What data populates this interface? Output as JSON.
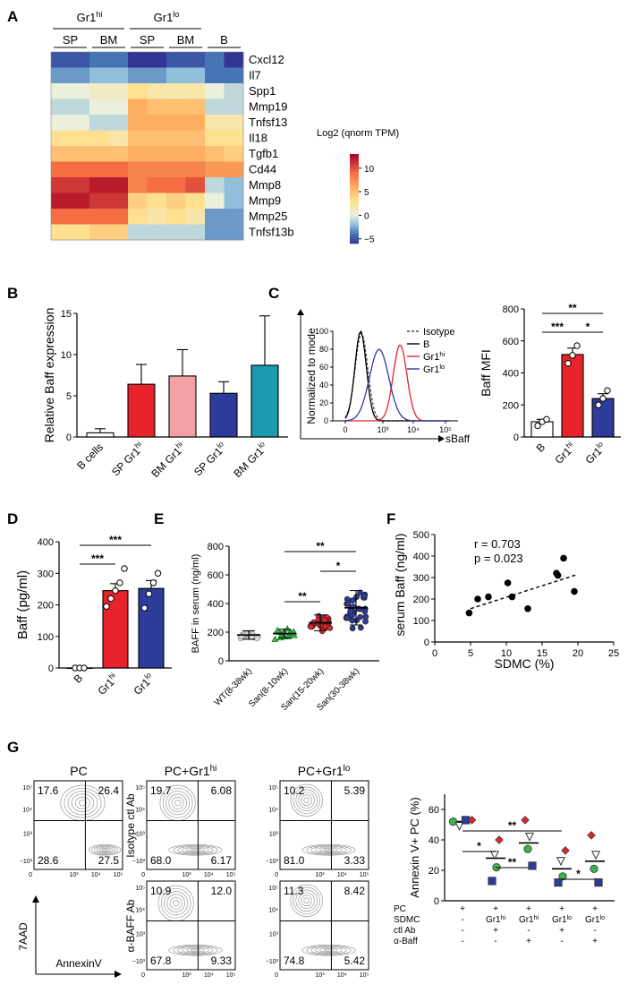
{
  "panel_labels": {
    "A": "A",
    "B": "B",
    "C": "C",
    "D": "D",
    "E": "E",
    "F": "F",
    "G": "G"
  },
  "chart_data": [
    {
      "id": "A",
      "type": "heatmap",
      "group_headers": [
        "Gr1hi",
        "Gr1lo"
      ],
      "subgroup_headers": [
        "SP",
        "BM",
        "SP",
        "BM",
        "B"
      ],
      "column_subgroups": [
        0,
        0,
        1,
        1,
        2,
        2,
        3,
        3,
        4,
        4
      ],
      "rows": [
        "Cxcl12",
        "Il7",
        "Spp1",
        "Mmp19",
        "Tnfsf13",
        "Il18",
        "Tgfb1",
        "Cd44",
        "Mmp8",
        "Mmp9",
        "Mmp25",
        "Tnfsf13b"
      ],
      "values": [
        [
          -5,
          -5,
          -4,
          -4,
          -6,
          -6,
          -5,
          -5,
          -4,
          -6
        ],
        [
          -3,
          -3,
          -2,
          -2,
          -3,
          -3,
          -2,
          -2,
          -4,
          -4
        ],
        [
          0,
          0,
          1,
          1,
          3,
          2,
          2,
          2,
          0,
          -1
        ],
        [
          -1,
          -1,
          0,
          0,
          6,
          5,
          5,
          5,
          -1,
          -1
        ],
        [
          0,
          0,
          -1,
          -1,
          6,
          6,
          6,
          6,
          2,
          2
        ],
        [
          3,
          3,
          3,
          2,
          5,
          5,
          5,
          5,
          3,
          3
        ],
        [
          5,
          5,
          5,
          5,
          6,
          6,
          6,
          6,
          5,
          4
        ],
        [
          9,
          9,
          9,
          9,
          8,
          8,
          8,
          8,
          7,
          7
        ],
        [
          11,
          11,
          12,
          12,
          8,
          9,
          9,
          10,
          -1,
          -2
        ],
        [
          12,
          12,
          11,
          11,
          4,
          3,
          4,
          3,
          0,
          -2
        ],
        [
          9,
          9,
          9,
          9,
          3,
          2,
          3,
          2,
          -3,
          -3
        ],
        [
          3,
          3,
          4,
          4,
          -1,
          -1,
          -1,
          -1,
          -3,
          -3
        ]
      ],
      "colorbar": {
        "title": "Log2 (qnorm TPM)",
        "ticks": [
          "10",
          "5",
          "0",
          "−5"
        ],
        "range": [
          -6,
          13
        ]
      }
    },
    {
      "id": "B",
      "type": "bar",
      "ylabel": "Relative Baff expression",
      "ylim": [
        0,
        15
      ],
      "yticks": [
        "0",
        "5",
        "10",
        "15"
      ],
      "categories": [
        "B cells",
        "SP Gr1hi",
        "BM Gr1hi",
        "SP Gr1lo",
        "BM Gr1lo"
      ],
      "values": [
        0.5,
        6.4,
        7.4,
        5.3,
        8.7
      ],
      "errors": [
        0.5,
        2.4,
        3.2,
        1.4,
        6.0
      ],
      "colors": [
        "#ffffff",
        "#e8232b",
        "#f4a1a3",
        "#2d3b9b",
        "#1a9bb0"
      ]
    },
    {
      "id": "C1",
      "type": "line",
      "ylabel": "Normalized to mode",
      "xlabel": "sBaff",
      "yticks": [
        "0",
        "20",
        "40",
        "60",
        "80",
        "100"
      ],
      "xticks": [
        "0",
        "10³",
        "10⁴",
        "10⁵"
      ],
      "legend": [
        "Isotype",
        "B",
        "Gr1hi",
        "Gr1lo"
      ],
      "series": [
        {
          "name": "Isotype",
          "peak": 0.4,
          "width": 0.55,
          "height": 98,
          "color": "#444444",
          "dashed": true
        },
        {
          "name": "B",
          "peak": 0.35,
          "width": 0.5,
          "height": 100,
          "color": "#000000",
          "dashed": false
        },
        {
          "name": "Gr1hi",
          "peak": 2.8,
          "width": 0.6,
          "height": 85,
          "color": "#e8232b",
          "dashed": false
        },
        {
          "name": "Gr1lo",
          "peak": 1.5,
          "width": 0.85,
          "height": 80,
          "color": "#2d3b9b",
          "dashed": false
        }
      ]
    },
    {
      "id": "C2",
      "type": "bar",
      "ylabel": "Baff MFI",
      "ylim": [
        0,
        800
      ],
      "yticks": [
        "0",
        "200",
        "400",
        "600",
        "800"
      ],
      "categories": [
        "B",
        "Gr1hi",
        "Gr1lo"
      ],
      "values": [
        95,
        515,
        240
      ],
      "errors": [
        15,
        40,
        30
      ],
      "points": [
        [
          70,
          95,
          110
        ],
        [
          460,
          510,
          570
        ],
        [
          200,
          240,
          290
        ]
      ],
      "colors": [
        "#ffffff",
        "#e8232b",
        "#2d3b9b"
      ],
      "significance": [
        "**",
        "***",
        "*"
      ]
    },
    {
      "id": "D",
      "type": "bar",
      "ylabel": "Baff (pg/ml)",
      "ylim": [
        0,
        400
      ],
      "yticks": [
        "0",
        "100",
        "200",
        "300",
        "400"
      ],
      "categories": [
        "B",
        "Gr1hi",
        "Gr1lo"
      ],
      "values": [
        0,
        245,
        252
      ],
      "errors": [
        2,
        22,
        25
      ],
      "points": [
        [
          0,
          0,
          0
        ],
        [
          195,
          220,
          245,
          270,
          315
        ],
        [
          190,
          235,
          270,
          300
        ]
      ],
      "colors": [
        "#ffffff",
        "#e8232b",
        "#2d3b9b"
      ],
      "significance": [
        "***",
        "***"
      ]
    },
    {
      "id": "E",
      "type": "scatter",
      "ylabel": "BAFF in serum (ng/ml)",
      "ylim": [
        0,
        800
      ],
      "yticks": [
        "0",
        "200",
        "400",
        "600",
        "800"
      ],
      "categories": [
        "WT(8-38wk)",
        "San(8-10wk)",
        "San(15-20wk)",
        "San(30-38wk)"
      ],
      "means": [
        180,
        190,
        265,
        370
      ],
      "sds": [
        30,
        30,
        55,
        120
      ],
      "colors": [
        "#dddddd",
        "#3cb44b",
        "#e8232b",
        "#2d3b9b"
      ],
      "n": [
        18,
        14,
        25,
        35
      ],
      "significance": [
        "**",
        "*",
        "**"
      ]
    },
    {
      "id": "F",
      "type": "scatter",
      "xlabel": "SDMC (%)",
      "ylabel": "serum Baff (ng/ml)",
      "xlim": [
        0,
        25
      ],
      "ylim": [
        0,
        500
      ],
      "xticks": [
        "0",
        "5",
        "10",
        "15",
        "20",
        "25"
      ],
      "yticks": [
        "0",
        "100",
        "200",
        "300",
        "400",
        "500"
      ],
      "points": [
        [
          4.8,
          135
        ],
        [
          6,
          200
        ],
        [
          7.5,
          210
        ],
        [
          10.2,
          275
        ],
        [
          10.8,
          210
        ],
        [
          13,
          155
        ],
        [
          17,
          320
        ],
        [
          17.2,
          310
        ],
        [
          18,
          390
        ],
        [
          19.5,
          235
        ]
      ],
      "fit": [
        [
          5,
          155
        ],
        [
          20,
          315
        ]
      ],
      "annotation_r": "r = 0.703",
      "annotation_p": "p = 0.023"
    },
    {
      "id": "G1",
      "type": "table",
      "titles": [
        "PC",
        "PC+Gr1hi",
        "PC+Gr1lo"
      ],
      "row_labels": [
        "Isotype ctl Ab",
        "α-BAFF Ab"
      ],
      "plots": [
        {
          "name": "PC",
          "q": [
            "17.6",
            "26.4",
            "28.6",
            "27.5"
          ]
        },
        {
          "name": "Gr1hi-isotype",
          "q": [
            "19.7",
            "6.08",
            "68.0",
            "6.17"
          ]
        },
        {
          "name": "Gr1lo-isotype",
          "q": [
            "10.2",
            "5.39",
            "81.0",
            "3.33"
          ]
        },
        {
          "name": "Gr1hi-antiBAFF",
          "q": [
            "10.9",
            "12.0",
            "67.8",
            "9.33"
          ]
        },
        {
          "name": "Gr1lo-antiBAFF",
          "q": [
            "11.3",
            "8.42",
            "74.8",
            "5.42"
          ]
        }
      ],
      "axis_y": "7AAD",
      "axis_x": "AnnexinV",
      "axis_ticks": [
        "0",
        "10³",
        "10⁴",
        "10⁵",
        "−10³"
      ]
    },
    {
      "id": "G2",
      "type": "scatter",
      "ylabel": "Annexin V+ PC (%)",
      "ylim": [
        0,
        70
      ],
      "yticks": [
        "0",
        "20",
        "40",
        "60"
      ],
      "means": [
        52,
        28,
        38,
        21,
        26
      ],
      "points": [
        [
          {
            "s": "circle",
            "c": "#3cb44b",
            "v": 52
          },
          {
            "s": "triangle",
            "c": "#ffffff",
            "v": 49
          },
          {
            "s": "square",
            "c": "#2d3b9b",
            "v": 53
          },
          {
            "s": "diamond",
            "c": "#e8232b",
            "v": 53
          }
        ],
        [
          {
            "s": "diamond",
            "c": "#e8232b",
            "v": 40
          },
          {
            "s": "triangle",
            "c": "#ffffff",
            "v": 30
          },
          {
            "s": "circle",
            "c": "#3cb44b",
            "v": 22
          },
          {
            "s": "square",
            "c": "#2d3b9b",
            "v": 13
          }
        ],
        [
          {
            "s": "diamond",
            "c": "#e8232b",
            "v": 53
          },
          {
            "s": "triangle",
            "c": "#ffffff",
            "v": 42
          },
          {
            "s": "circle",
            "c": "#3cb44b",
            "v": 34
          },
          {
            "s": "square",
            "c": "#2d3b9b",
            "v": 23
          }
        ],
        [
          {
            "s": "diamond",
            "c": "#e8232b",
            "v": 33
          },
          {
            "s": "triangle",
            "c": "#ffffff",
            "v": 26
          },
          {
            "s": "circle",
            "c": "#3cb44b",
            "v": 16
          },
          {
            "s": "square",
            "c": "#2d3b9b",
            "v": 12
          }
        ],
        [
          {
            "s": "diamond",
            "c": "#e8232b",
            "v": 43
          },
          {
            "s": "triangle",
            "c": "#ffffff",
            "v": 30
          },
          {
            "s": "circle",
            "c": "#3cb44b",
            "v": 21
          },
          {
            "s": "square",
            "c": "#2d3b9b",
            "v": 12
          }
        ]
      ],
      "table_rows": [
        {
          "label": "PC",
          "cells": [
            "+",
            "+",
            "+",
            "+",
            "+"
          ]
        },
        {
          "label": "SDMC",
          "cells": [
            "-",
            "Gr1hi",
            "Gr1hi",
            "Gr1lo",
            "Gr1lo"
          ]
        },
        {
          "label": "ctl Ab",
          "cells": [
            "-",
            "+",
            "-",
            "+",
            "-"
          ]
        },
        {
          "label": "α-Baff",
          "cells": [
            "-",
            "-",
            "+",
            "-",
            "+"
          ]
        }
      ],
      "significance": [
        "*",
        "**",
        "**",
        "*"
      ]
    }
  ]
}
